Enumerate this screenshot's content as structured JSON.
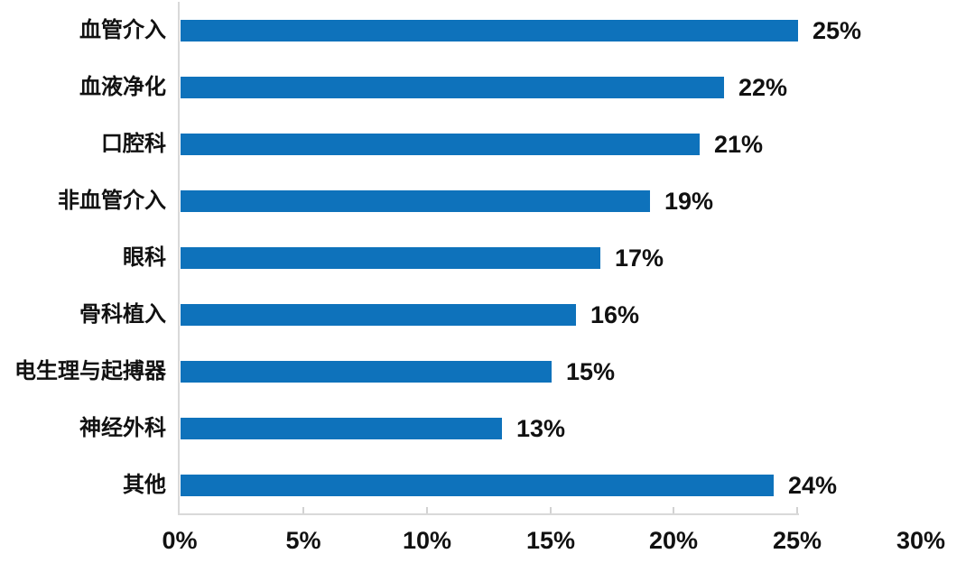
{
  "chart_data": {
    "type": "bar",
    "orientation": "horizontal",
    "title": "",
    "xlabel": "",
    "ylabel": "",
    "categories": [
      "血管介入",
      "血液净化",
      "口腔科",
      "非血管介入",
      "眼科",
      "骨科植入",
      "电生理与起搏器",
      "神经外科",
      "其他"
    ],
    "values": [
      25,
      22,
      21,
      19,
      17,
      16,
      15,
      13,
      24
    ],
    "value_labels": [
      "25%",
      "22%",
      "21%",
      "19%",
      "17%",
      "16%",
      "15%",
      "13%",
      "24%"
    ],
    "x_tick_labels": [
      "0%",
      "5%",
      "10%",
      "15%",
      "20%",
      "25%",
      "30%"
    ],
    "x_tick_values": [
      0,
      5,
      10,
      15,
      20,
      25,
      30
    ],
    "xlim": [
      0,
      30
    ],
    "grid": false,
    "legend": false,
    "bar_color": "#0e72bb",
    "axis_color": "#d9d9d9",
    "text_color": "#111111",
    "background_color": "#ffffff"
  }
}
